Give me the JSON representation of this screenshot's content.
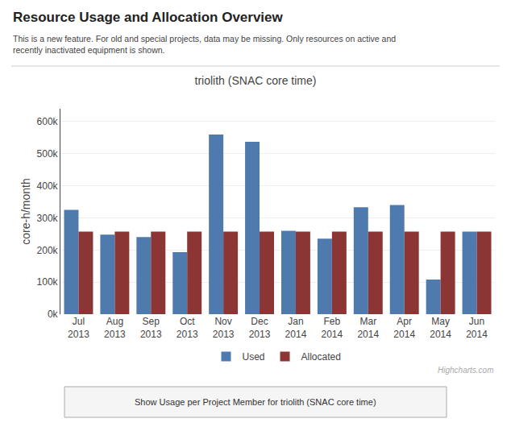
{
  "chart_data": {
    "type": "bar",
    "title": "triolith (SNAC core time)",
    "subtitle": "This is a new feature. For old and special projects, data may be missing. Only resources on active and\nrecently inactivated equipment is shown.",
    "ylabel": "core-h/month",
    "categories": [
      "Jul\n2013",
      "Aug\n2013",
      "Sep\n2013",
      "Oct\n2013",
      "Nov\n2013",
      "Dec\n2013",
      "Jan\n2014",
      "Feb\n2014",
      "Mar\n2014",
      "Apr\n2014",
      "May\n2014",
      "Jun\n2014"
    ],
    "series": [
      {
        "name": "Used",
        "color": "#4f7aad",
        "values": [
          325000,
          248000,
          240000,
          193000,
          560000,
          537000,
          260000,
          235000,
          333000,
          340000,
          108000,
          257000
        ]
      },
      {
        "name": "Allocated",
        "color": "#8b3535",
        "values": [
          257000,
          257000,
          257000,
          257000,
          257000,
          257000,
          257000,
          257000,
          257000,
          257000,
          257000,
          257000
        ]
      }
    ],
    "ylim": [
      0,
      640000
    ],
    "yticks": [
      {
        "value": 0,
        "label": "0k"
      },
      {
        "value": 100000,
        "label": "100k"
      },
      {
        "value": 200000,
        "label": "200k"
      },
      {
        "value": 300000,
        "label": "300k"
      },
      {
        "value": 400000,
        "label": "400k"
      },
      {
        "value": 500000,
        "label": "500k"
      },
      {
        "value": 600000,
        "label": "600k"
      }
    ],
    "grid": true,
    "legend": "bottom",
    "annotations": [
      "Resource Usage and Allocation Overview",
      "Highcharts.com",
      "Show Usage per Project Member for triolith (SNAC core time)"
    ]
  }
}
